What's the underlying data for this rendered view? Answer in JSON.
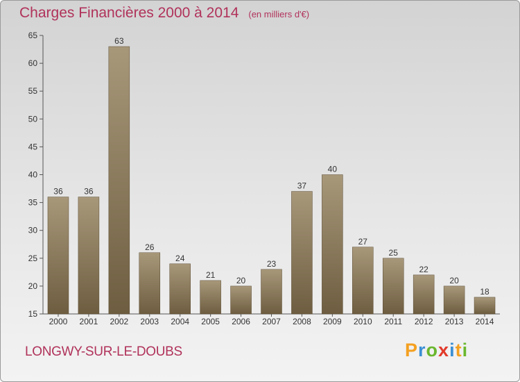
{
  "title": "Charges Financières 2000 à 2014",
  "subtitle": "(en milliers d'€)",
  "commune": "LONGWY-SUR-LE-DOUBS",
  "logo": {
    "p": "P",
    "r": "r",
    "o": "o",
    "x": "x",
    "i": "i",
    "t": "t",
    "i2": "i"
  },
  "colors": {
    "accent": "#b0325a",
    "bar_top": "#a8987a",
    "bar_bottom": "#6e5d40"
  },
  "chart_data": {
    "type": "bar",
    "title": "Charges Financières 2000 à 2014",
    "subtitle": "(en milliers d'€)",
    "categories": [
      "2000",
      "2001",
      "2002",
      "2003",
      "2004",
      "2005",
      "2006",
      "2007",
      "2008",
      "2009",
      "2010",
      "2011",
      "2012",
      "2013",
      "2014"
    ],
    "values": [
      36,
      36,
      63,
      26,
      24,
      21,
      20,
      23,
      37,
      40,
      27,
      25,
      22,
      20,
      18
    ],
    "ylim": [
      15,
      65
    ],
    "yticks": [
      15,
      20,
      25,
      30,
      35,
      40,
      45,
      50,
      55,
      60,
      65
    ],
    "grid": false,
    "xlabel": "",
    "ylabel": ""
  }
}
